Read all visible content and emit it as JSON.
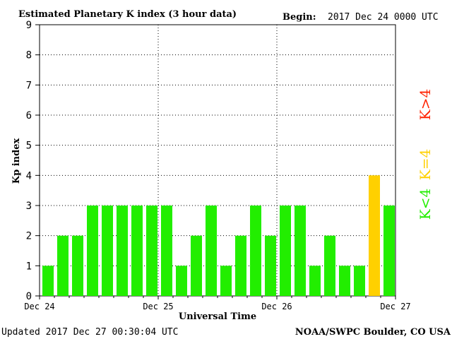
{
  "chart_data": {
    "type": "bar",
    "title": "Estimated Planetary K index (3 hour data)",
    "begin_label": "Begin:",
    "begin_value": "2017 Dec 24 0000 UTC",
    "xlabel": "Universal Time",
    "ylabel": "Kp index",
    "ylim": [
      0,
      9
    ],
    "yticks": [
      "0",
      "1",
      "2",
      "3",
      "4",
      "5",
      "6",
      "7",
      "8",
      "9"
    ],
    "xtick_labels": [
      "Dec 24",
      "Dec 25",
      "Dec 26",
      "Dec 27"
    ],
    "bars_per_day": 8,
    "values": [
      1,
      2,
      2,
      3,
      3,
      3,
      3,
      3,
      3,
      1,
      2,
      3,
      1,
      2,
      3,
      2,
      3,
      3,
      1,
      2,
      1,
      1,
      4,
      3
    ],
    "grid": "dotted",
    "legend": [
      {
        "label": "K<4",
        "color": "#22ee00"
      },
      {
        "label": "K=4",
        "color": "#ffd000"
      },
      {
        "label": "K>4",
        "color": "#ff2200"
      }
    ]
  },
  "footer": {
    "updated": "Updated 2017 Dec 27 00:30:04 UTC",
    "source": "NOAA/SWPC Boulder, CO USA"
  },
  "colors": {
    "low": "#22ee00",
    "moderate": "#ffd000",
    "high": "#ff2200"
  }
}
